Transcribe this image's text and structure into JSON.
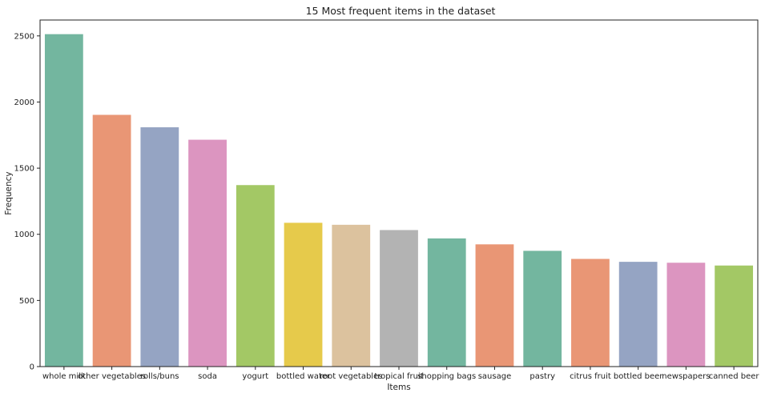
{
  "chart_data": {
    "type": "bar",
    "title": "15 Most frequent items in the dataset",
    "xlabel": "Items",
    "ylabel": "Frequency",
    "ylim": [
      0,
      2620
    ],
    "yticks": [
      0,
      500,
      1000,
      1500,
      2000,
      2500
    ],
    "grid": false,
    "categories": [
      "whole milk",
      "other vegetables",
      "rolls/buns",
      "soda",
      "yogurt",
      "bottled water",
      "root vegetables",
      "tropical fruit",
      "shopping bags",
      "sausage",
      "pastry",
      "citrus fruit",
      "bottled beer",
      "newspapers",
      "canned beer"
    ],
    "values": [
      2513,
      1903,
      1809,
      1715,
      1372,
      1087,
      1072,
      1032,
      969,
      924,
      875,
      814,
      792,
      785,
      764
    ],
    "colors": [
      "#73b69f",
      "#e99675",
      "#95a4c3",
      "#dc95c0",
      "#a3c865",
      "#e6ca4b",
      "#dcc29e",
      "#b3b3b3",
      "#73b69f",
      "#e99675",
      "#73b69f",
      "#e99675",
      "#95a4c3",
      "#dc95c0",
      "#a3c865"
    ]
  }
}
